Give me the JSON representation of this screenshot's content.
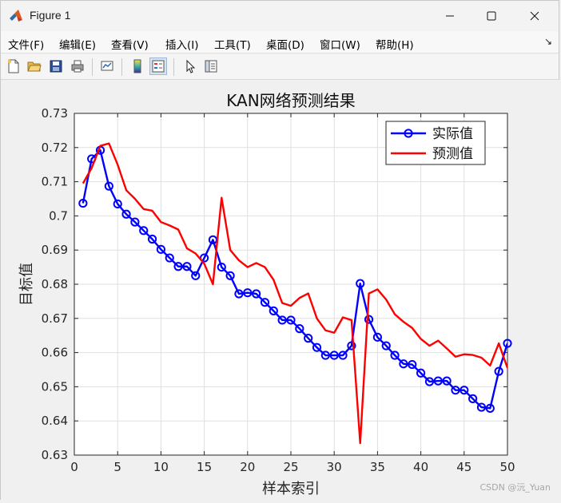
{
  "window": {
    "title": "Figure 1"
  },
  "menu": {
    "items": [
      "文件(F)",
      "编辑(E)",
      "查看(V)",
      "插入(I)",
      "工具(T)",
      "桌面(D)",
      "窗口(W)",
      "帮助(H)"
    ],
    "overflow_glyph": "↘"
  },
  "toolbar": {
    "icons": [
      "new-figure-icon",
      "open-file-icon",
      "save-icon",
      "print-icon",
      "link-plot-icon",
      "colorbar-icon",
      "legend-icon",
      "pointer-icon",
      "property-inspector-icon"
    ]
  },
  "watermark": "CSDN @沅_Yuan",
  "chart_data": {
    "type": "line",
    "title": "KAN网络预测结果",
    "xlabel": "样本索引",
    "ylabel": "目标值",
    "xlim": [
      0,
      50
    ],
    "ylim": [
      0.63,
      0.73
    ],
    "xticks": [
      0,
      5,
      10,
      15,
      20,
      25,
      30,
      35,
      40,
      45,
      50
    ],
    "yticks": [
      0.63,
      0.64,
      0.65,
      0.66,
      0.67,
      0.68,
      0.69,
      0.7,
      0.71,
      0.72,
      0.73
    ],
    "ytick_labels": [
      "0.63",
      "0.64",
      "0.65",
      "0.66",
      "0.67",
      "0.68",
      "0.69",
      "0.7",
      "0.71",
      "0.72",
      "0.73"
    ],
    "grid": true,
    "legend_position": "top-right",
    "x": [
      1,
      2,
      3,
      4,
      5,
      6,
      7,
      8,
      9,
      10,
      11,
      12,
      13,
      14,
      15,
      16,
      17,
      18,
      19,
      20,
      21,
      22,
      23,
      24,
      25,
      26,
      27,
      28,
      29,
      30,
      31,
      32,
      33,
      34,
      35,
      36,
      37,
      38,
      39,
      40,
      41,
      42,
      43,
      44,
      45,
      46,
      47,
      48,
      49,
      50
    ],
    "series": [
      {
        "name": "实际值",
        "color": "#0000ff",
        "marker": "circle",
        "values": [
          0.7037,
          0.7167,
          0.7192,
          0.7087,
          0.7035,
          0.7005,
          0.6982,
          0.6957,
          0.6932,
          0.6902,
          0.6877,
          0.6852,
          0.6852,
          0.6825,
          0.6877,
          0.693,
          0.685,
          0.6825,
          0.6772,
          0.6775,
          0.6772,
          0.6747,
          0.6722,
          0.6695,
          0.6695,
          0.667,
          0.6642,
          0.6615,
          0.6592,
          0.6592,
          0.6592,
          0.662,
          0.6802,
          0.6697,
          0.6645,
          0.662,
          0.6592,
          0.6567,
          0.6565,
          0.654,
          0.6515,
          0.6517,
          0.6517,
          0.649,
          0.649,
          0.6465,
          0.644,
          0.6437,
          0.6545,
          0.6627
        ]
      },
      {
        "name": "预测值",
        "color": "#ff0000",
        "marker": "none",
        "values": [
          0.7095,
          0.714,
          0.7205,
          0.7212,
          0.715,
          0.7075,
          0.705,
          0.702,
          0.7015,
          0.6982,
          0.6972,
          0.696,
          0.6905,
          0.689,
          0.686,
          0.68,
          0.7053,
          0.69,
          0.687,
          0.685,
          0.6862,
          0.685,
          0.6813,
          0.6745,
          0.6737,
          0.676,
          0.6773,
          0.67,
          0.6665,
          0.6658,
          0.6703,
          0.6695,
          0.6335,
          0.6773,
          0.6785,
          0.6755,
          0.6712,
          0.669,
          0.6672,
          0.664,
          0.662,
          0.6635,
          0.6612,
          0.6588,
          0.6595,
          0.6593,
          0.6585,
          0.6562,
          0.6627,
          0.6555
        ]
      }
    ]
  }
}
